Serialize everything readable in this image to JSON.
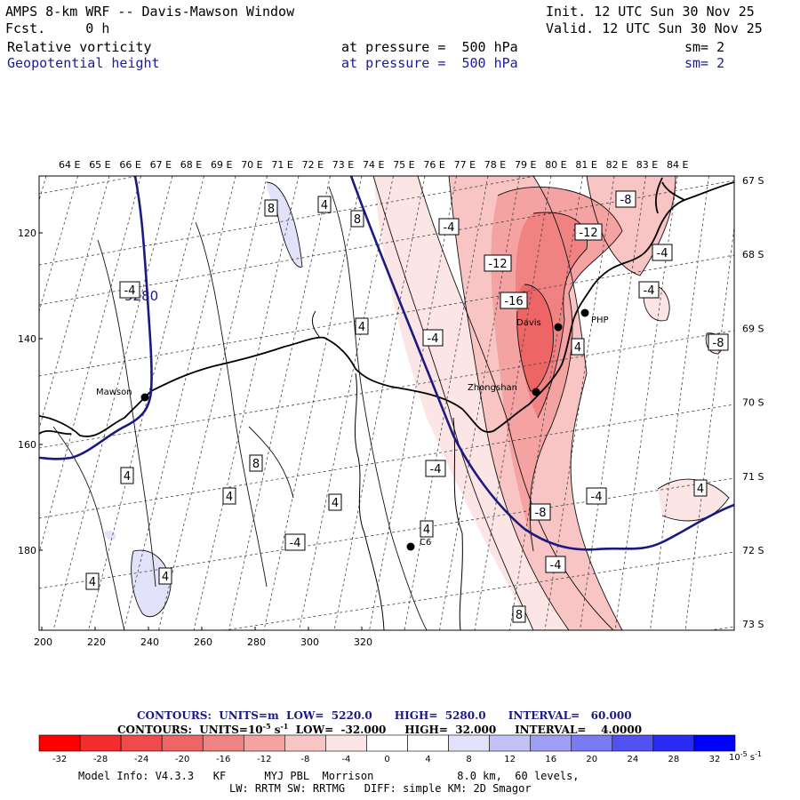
{
  "header": {
    "title": "AMPS 8-km WRF -- Davis-Mawson Window",
    "init": "Init. 12 UTC Sun 30 Nov 25",
    "fcst": "Fcst.     0 h",
    "valid": "Valid. 12 UTC Sun 30 Nov 25",
    "field1": {
      "name": "Relative vorticity",
      "level": "at pressure =  500 hPa",
      "sm": "sm= 2"
    },
    "field2": {
      "name": "Geopotential height",
      "level": "at pressure =  500 hPa",
      "sm": "sm= 2"
    }
  },
  "map": {
    "top_lon_labels": [
      "64 E",
      "65 E",
      "66 E",
      "67 E",
      "68 E",
      "69 E",
      "70 E",
      "71 E",
      "72 E",
      "73 E",
      "74 E",
      "75 E",
      "76 E",
      "77 E",
      "78 E",
      "79 E",
      "80 E",
      "81 E",
      "82 E",
      "83 E",
      "84 E"
    ],
    "right_lat_labels": [
      "67 S",
      "68 S",
      "69 S",
      "70 S",
      "71 S",
      "72 S",
      "73 S"
    ],
    "left_y_labels": [
      "120",
      "140",
      "160",
      "180"
    ],
    "bottom_x_labels": [
      "200",
      "220",
      "240",
      "260",
      "280",
      "300",
      "320"
    ],
    "stations": [
      {
        "name": "Mawson"
      },
      {
        "name": "Davis"
      },
      {
        "name": "Zhongshan"
      },
      {
        "name": "PHP"
      },
      {
        "name": "C6"
      }
    ],
    "height_label": "5280",
    "vort_labels": [
      "8",
      "4",
      "8",
      "-4",
      "-12",
      "-8",
      "-4",
      "-12",
      "-16",
      "-4",
      "4",
      "-4",
      "4",
      "-8",
      "-4",
      "8",
      "4",
      "4",
      "4",
      "4",
      "-4",
      "-8",
      "-4",
      "-4",
      "4",
      "4",
      "8",
      "4",
      "-4"
    ],
    "colors": {
      "height_contour": "#1a1a80",
      "coast": "#000000"
    }
  },
  "info": {
    "line1_label": "CONTOURS:  UNITS=m",
    "line1_low": "LOW=  5220.0",
    "line1_high": "HIGH=  5280.0",
    "line1_int": "INTERVAL=   60.000",
    "line2_label": "CONTOURS:  UNITS=10",
    "line2_exp": "-5",
    "line2_unit": " s",
    "line2_exp2": "-1",
    "line2_low": "LOW=  -32.000",
    "line2_high": "HIGH=  32.000",
    "line2_int": "INTERVAL=    4.0000"
  },
  "colorbar": {
    "ticks": [
      "-32",
      "-28",
      "-24",
      "-20",
      "-16",
      "-12",
      "-8",
      "-4",
      "0",
      "4",
      "8",
      "12",
      "16",
      "20",
      "24",
      "28",
      "32"
    ],
    "unit": "10",
    "unit_exp": "-5",
    "unit_s": " s",
    "unit_exp2": "-1",
    "colors": [
      "#ff0000",
      "#f52c2c",
      "#f04a4a",
      "#ee6565",
      "#f08282",
      "#f4a2a2",
      "#f8c4c4",
      "#fce5e5",
      "#ffffff",
      "#ffffff",
      "#e2e2fa",
      "#c2c2f6",
      "#9e9ef4",
      "#7a7af2",
      "#5252f2",
      "#2a2af4",
      "#0000ff"
    ]
  },
  "footer": {
    "line1": "Model Info: V4.3.3   KF      MYJ PBL  Morrison             8.0 km,  60 levels,",
    "line2": "LW: RRTM SW: RRTMG   DIFF: simple KM: 2D Smagor"
  }
}
